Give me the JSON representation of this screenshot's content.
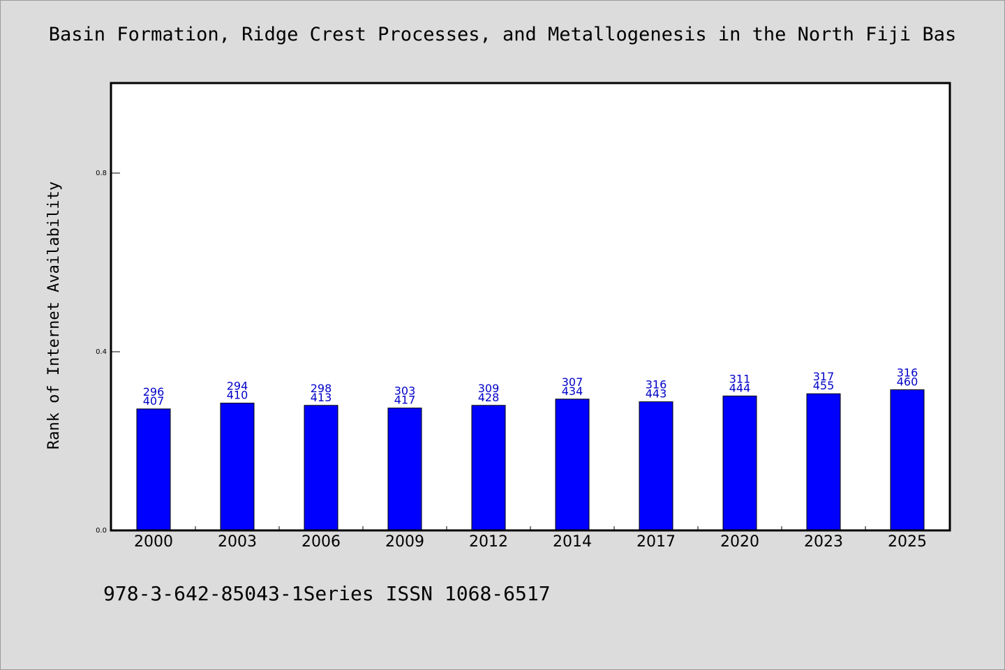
{
  "title": "Basin Formation, Ridge Crest Processes, and Metallogenesis in the North Fiji Bas",
  "footer": "978-3-642-85043-1Series ISSN 1068-6517",
  "colors": {
    "background": "#dcdcdc",
    "plot_background": "#ffffff",
    "bar": "#0000ff",
    "data_label": "#0000c8"
  },
  "chart_data": {
    "type": "bar",
    "title": "Basin Formation, Ridge Crest Processes, and Metallogenesis in the North Fiji Bas",
    "xlabel": "",
    "ylabel": "Rank of Internet Availability",
    "ylim": [
      0,
      1.0
    ],
    "yticks": [
      "0.0",
      "0.4",
      "0.8"
    ],
    "grid": false,
    "categories": [
      "2000",
      "2003",
      "2006",
      "2009",
      "2012",
      "2014",
      "2017",
      "2020",
      "2023",
      "2025"
    ],
    "values": [
      0.272,
      0.285,
      0.28,
      0.274,
      0.28,
      0.294,
      0.288,
      0.301,
      0.306,
      0.315
    ],
    "labels_top": [
      "296",
      "294",
      "298",
      "303",
      "309",
      "307",
      "316",
      "311",
      "317",
      "316"
    ],
    "labels_bottom": [
      "407",
      "410",
      "413",
      "417",
      "428",
      "434",
      "443",
      "444",
      "455",
      "460"
    ]
  }
}
